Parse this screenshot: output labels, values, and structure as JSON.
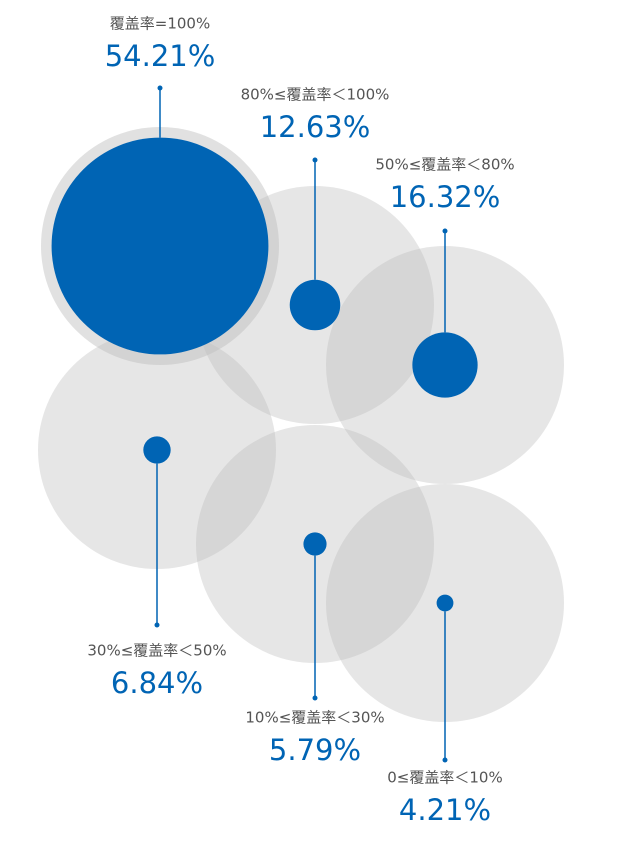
{
  "chart_data": {
    "type": "bubble",
    "categories": [
      "覆盖率=100%",
      "80%≤覆盖率＜100%",
      "50%≤覆盖率＜80%",
      "30%≤覆盖率＜50%",
      "10%≤覆盖率＜30%",
      "0≤覆盖率＜10%"
    ],
    "values": [
      54.21,
      12.63,
      16.32,
      6.84,
      5.79,
      4.21
    ],
    "value_labels": [
      "54.21%",
      "12.63%",
      "16.32%",
      "6.84%",
      "5.79%",
      "4.21%"
    ],
    "color": "#0064b4"
  }
}
